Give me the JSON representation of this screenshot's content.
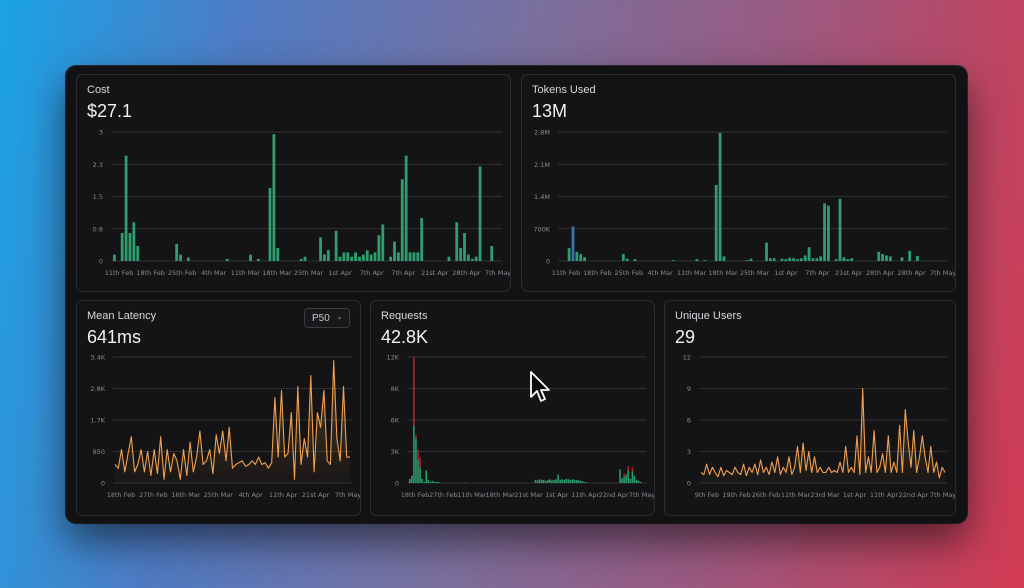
{
  "cards": {
    "cost": {
      "title": "Cost",
      "value": "$27.1"
    },
    "tokens": {
      "title": "Tokens Used",
      "value": "13M"
    },
    "latency": {
      "title": "Mean Latency",
      "value": "641ms",
      "selector": "P50"
    },
    "requests": {
      "title": "Requests",
      "value": "42.8K"
    },
    "users": {
      "title": "Unique Users",
      "value": "29"
    }
  },
  "icons": {
    "dropdown": "chevron-down-icon",
    "cursor": "mouse-pointer-icon"
  },
  "colors": {
    "bar_green": "#2e9e6e",
    "bar_blue": "#3a6fb0",
    "bar_red": "#b8242c",
    "line_orange": "#f0a050"
  },
  "chart_data": [
    {
      "type": "bar",
      "yticks": [
        "3",
        "2.3",
        "1.5",
        "0.8",
        "0"
      ],
      "ylim": [
        0,
        3
      ],
      "xticks": [
        "11th Feb",
        "18th Feb",
        "25th Feb",
        "4th Mar",
        "11th Mar",
        "18th Mar",
        "25th Mar",
        "1st Apr",
        "7th Apr",
        "7th Apr",
        "21st Apr",
        "28th Apr",
        "7th May"
      ],
      "values": [
        0.15,
        0,
        0.65,
        2.45,
        0.65,
        0.9,
        0.35,
        0,
        0,
        0,
        0,
        0,
        0,
        0,
        0,
        0,
        0.4,
        0.15,
        0,
        0.08,
        0,
        0,
        0,
        0,
        0,
        0,
        0,
        0,
        0,
        0.05,
        0,
        0,
        0,
        0,
        0,
        0.15,
        0,
        0.05,
        0,
        0,
        1.7,
        2.95,
        0.3,
        0,
        0,
        0,
        0,
        0,
        0.05,
        0.1,
        0,
        0,
        0,
        0.55,
        0.15,
        0.25,
        0,
        0.7,
        0.1,
        0.2,
        0.2,
        0.1,
        0.2,
        0.1,
        0.15,
        0.25,
        0.15,
        0.2,
        0.6,
        0.85,
        0,
        0.1,
        0.45,
        0.2,
        1.9,
        2.45,
        0.2,
        0.2,
        0.2,
        1.0,
        0,
        0,
        0,
        0,
        0,
        0,
        0.1,
        0,
        0.9,
        0.3,
        0.65,
        0.15,
        0.05,
        0.1,
        2.2,
        0,
        0,
        0.35,
        0,
        0
      ]
    },
    {
      "type": "bar",
      "yticks": [
        "2.8M",
        "2.1M",
        "1.4M",
        "700K",
        "0"
      ],
      "ylim": [
        0,
        2800000
      ],
      "xticks": [
        "11th Feb",
        "18th Feb",
        "25th Feb",
        "4th Mar",
        "11th Mar",
        "18th Mar",
        "25th Mar",
        "1st Apr",
        "7th Apr",
        "21st Apr",
        "28th Apr",
        "28th Apr",
        "7th May"
      ],
      "values": [
        0,
        0,
        280000,
        750000,
        200000,
        150000,
        80000,
        0,
        0,
        0,
        0,
        0,
        0,
        0,
        0,
        0,
        150000,
        50000,
        0,
        40000,
        0,
        0,
        0,
        0,
        0,
        0,
        0,
        0,
        0,
        20000,
        0,
        0,
        0,
        0,
        0,
        40000,
        0,
        20000,
        0,
        0,
        1650000,
        2780000,
        100000,
        0,
        0,
        0,
        0,
        0,
        20000,
        50000,
        0,
        0,
        0,
        400000,
        60000,
        60000,
        0,
        50000,
        40000,
        70000,
        60000,
        40000,
        60000,
        120000,
        300000,
        60000,
        60000,
        100000,
        1250000,
        1200000,
        0,
        40000,
        1350000,
        80000,
        40000,
        60000,
        0,
        0,
        0,
        0,
        0,
        0,
        200000,
        150000,
        120000,
        100000,
        0,
        0,
        80000,
        0,
        220000,
        0,
        110000,
        0,
        0,
        0,
        0,
        0,
        0,
        0
      ]
    },
    {
      "type": "line",
      "yticks": [
        "3.4K",
        "2.8K",
        "1.7K",
        "850",
        "0"
      ],
      "ylim": [
        0,
        3400
      ],
      "xticks": [
        "18th Feb",
        "27th Feb",
        "16th Mar",
        "25th Mar",
        "4th Apr",
        "11th Apr",
        "21st Apr",
        "7th May"
      ],
      "values": [
        500,
        400,
        900,
        300,
        800,
        1250,
        300,
        500,
        900,
        300,
        850,
        200,
        900,
        250,
        1250,
        100,
        900,
        300,
        800,
        600,
        100,
        900,
        200,
        1100,
        300,
        700,
        1400,
        500,
        600,
        900,
        250,
        1300,
        800,
        1400,
        600,
        1500,
        400,
        500,
        550,
        600,
        450,
        500,
        600,
        500,
        700,
        500,
        550,
        400,
        550,
        2300,
        700,
        2500,
        700,
        800,
        1900,
        100,
        2600,
        500,
        1200,
        700,
        2900,
        300,
        1900,
        1500,
        2500,
        600,
        500,
        3300,
        1200,
        600,
        2600,
        700,
        700
      ]
    },
    {
      "type": "bar",
      "yticks": [
        "12K",
        "8K",
        "6K",
        "3K",
        "0"
      ],
      "ylim": [
        0,
        12000
      ],
      "xticks": [
        "18th Feb",
        "27th Feb",
        "11th Mar",
        "18th Mar",
        "21st Mar",
        "1st Apr",
        "11th Apr",
        "22nd Apr",
        "7th May"
      ],
      "series": [
        {
          "name": "success",
          "values": [
            400,
            700,
            5500,
            4200,
            2200,
            1500,
            400,
            100,
            1200,
            300,
            100,
            200,
            100,
            100,
            100,
            0,
            0,
            0,
            0,
            0,
            0,
            0,
            0,
            0,
            0,
            0,
            0,
            50,
            0,
            0,
            0,
            0,
            0,
            0,
            0,
            0,
            0,
            0,
            0,
            0,
            0,
            0,
            0,
            0,
            0,
            0,
            0,
            0,
            0,
            0,
            0,
            0,
            0,
            0,
            0,
            0,
            0,
            0,
            0,
            0,
            0,
            300,
            250,
            350,
            300,
            300,
            200,
            300,
            350,
            250,
            300,
            350,
            800,
            300,
            350,
            300,
            400,
            350,
            300,
            350,
            300,
            300,
            250,
            200,
            150,
            100,
            50,
            0,
            0,
            0,
            0,
            0,
            0,
            0,
            0,
            0,
            0,
            0,
            0,
            0,
            0,
            0,
            1300,
            450,
            600,
            800,
            1200,
            400,
            1100,
            700,
            300,
            200,
            100,
            0,
            0
          ]
        },
        {
          "name": "error",
          "values": [
            0,
            0,
            6500,
            400,
            1000,
            900,
            0,
            0,
            0,
            0,
            0,
            0,
            0,
            0,
            0,
            0,
            0,
            0,
            0,
            0,
            0,
            0,
            0,
            0,
            0,
            0,
            0,
            0,
            0,
            0,
            0,
            0,
            0,
            0,
            0,
            0,
            0,
            0,
            0,
            0,
            0,
            0,
            0,
            0,
            0,
            0,
            0,
            0,
            0,
            0,
            0,
            0,
            0,
            0,
            0,
            0,
            0,
            0,
            0,
            0,
            0,
            0,
            0,
            0,
            0,
            0,
            0,
            0,
            0,
            0,
            0,
            0,
            0,
            0,
            0,
            0,
            0,
            0,
            0,
            0,
            0,
            0,
            0,
            0,
            0,
            0,
            0,
            0,
            0,
            0,
            0,
            0,
            0,
            0,
            0,
            0,
            0,
            0,
            0,
            0,
            0,
            0,
            0,
            0,
            300,
            0,
            400,
            0,
            400,
            0,
            0,
            0,
            0,
            0,
            0
          ]
        }
      ]
    },
    {
      "type": "line",
      "yticks": [
        "12",
        "9",
        "6",
        "3",
        "0"
      ],
      "ylim": [
        0,
        12
      ],
      "xticks": [
        "9th Feb",
        "19th Feb",
        "26th Feb",
        "11th Mar",
        "23rd Mar",
        "1st Apr",
        "11th Apr",
        "22nd Apr",
        "7th May"
      ],
      "values": [
        1,
        0.8,
        1.8,
        0.8,
        1.5,
        1,
        0.6,
        1.5,
        0.7,
        1.2,
        1,
        0.8,
        1.5,
        1,
        0.8,
        1.8,
        0.7,
        1.5,
        1,
        1.8,
        0.8,
        2.2,
        1,
        1.5,
        0.8,
        2,
        1,
        2.5,
        0.8,
        1.5,
        1,
        2.5,
        0.8,
        1.5,
        3.5,
        1,
        3.8,
        1.2,
        3,
        1,
        2.5,
        1,
        1.5,
        1,
        1,
        1.5,
        1,
        1.2,
        1,
        2,
        1,
        3.5,
        1,
        1.5,
        1,
        4.5,
        0.8,
        9,
        1,
        2.5,
        1,
        5,
        1,
        1.5,
        2.8,
        1,
        4.5,
        1,
        2,
        1,
        5.5,
        1,
        7,
        4,
        1.5,
        5,
        1,
        2.5,
        4.5,
        2.5,
        1,
        3.5,
        1,
        2,
        0.5,
        1.5,
        1
      ]
    }
  ]
}
